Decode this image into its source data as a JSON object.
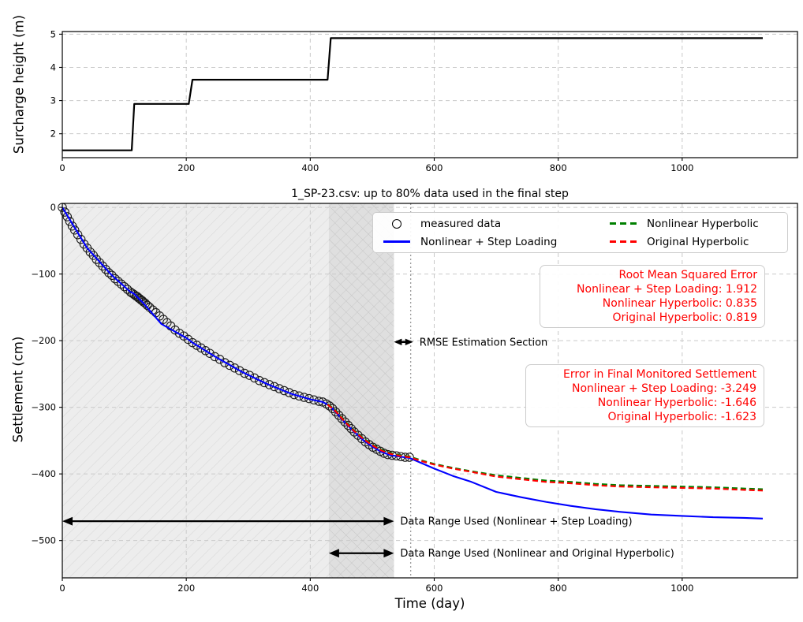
{
  "chart_data": [
    {
      "type": "line",
      "name": "surcharge-height-vs-time",
      "title": "",
      "xlabel": "",
      "ylabel": "Surcharge height (m)",
      "x_ticks": [
        0,
        200,
        400,
        600,
        800,
        1000
      ],
      "y_ticks": [
        2,
        3,
        4,
        5
      ],
      "xlim": [
        0,
        1186
      ],
      "ylim": [
        1.28,
        5.08
      ],
      "grid": true,
      "series": [
        {
          "name": "surcharge height",
          "type": "line",
          "color": "#000000",
          "width": 2.2,
          "dash": null,
          "x": [
            0,
            112,
            116,
            204,
            210,
            428,
            433,
            1130
          ],
          "y": [
            1.5,
            1.5,
            2.9,
            2.9,
            3.63,
            3.63,
            4.88,
            4.88
          ]
        }
      ]
    },
    {
      "type": "line+scatter",
      "name": "settlement-vs-time",
      "title": "1_SP-23.csv: up to 80% data used in the final step",
      "xlabel": "Time (day)",
      "ylabel": "Settlement (cm)",
      "x_ticks": [
        0,
        200,
        400,
        600,
        800,
        1000
      ],
      "y_ticks": [
        0,
        -100,
        -200,
        -300,
        -400,
        -500
      ],
      "xlim": [
        0,
        1186
      ],
      "ylim": [
        -556,
        6
      ],
      "grid": true,
      "legend": {
        "position": "upper center",
        "entries": [
          {
            "label": "measured data",
            "marker": "circle",
            "color": "#000000"
          },
          {
            "label": "Nonlinear + Step Loading",
            "marker": "solid-line",
            "color": "#0000ff"
          },
          {
            "label": "Nonlinear Hyperbolic",
            "marker": "dashed-line",
            "color": "#008000"
          },
          {
            "label": "Original Hyperbolic",
            "marker": "dashed-line",
            "color": "#ff0000"
          }
        ]
      },
      "spans": [
        {
          "name": "step-loading-range",
          "x0": 0,
          "x1": 535,
          "fill": "#ededed",
          "hatch": "/",
          "hatch_color": "#d6d6d6"
        },
        {
          "name": "hyperbolic-range",
          "x0": 430,
          "x1": 535,
          "fill": "rgba(0,0,0,0.06)",
          "hatch": "\\",
          "hatch_color": "#c4c4c4"
        }
      ],
      "vlines": [
        {
          "x": 562,
          "style": "dotted",
          "color": "#9a9a9a"
        }
      ],
      "arrows": [
        {
          "name": "rmse-estimation-section",
          "x0": 535,
          "x1": 566,
          "y": -202,
          "head": 10,
          "lw": 2.5,
          "label": "RMSE Estimation Section",
          "label_size": 13
        },
        {
          "name": "data-range-step-loading",
          "x0": 0,
          "x1": 535,
          "y": -471,
          "head": 13,
          "lw": 2.3,
          "label": "Data Range Used (Nonlinear + Step Loading)",
          "label_size": 13
        },
        {
          "name": "data-range-hyperbolic",
          "x0": 430,
          "x1": 535,
          "y": -519,
          "head": 13,
          "lw": 2.3,
          "label": "Data Range Used (Nonlinear and Original Hyperbolic)",
          "label_size": 13
        }
      ],
      "annotation_boxes": [
        {
          "name": "root-mean-squared-error",
          "color": "#ff0000",
          "lines": [
            "Root Mean Squared Error",
            "Nonlinear + Step Loading: 1.912",
            "Nonlinear Hyperbolic: 0.835",
            "Original Hyperbolic: 0.819"
          ]
        },
        {
          "name": "error-in-final-monitored-settlement",
          "color": "#ff0000",
          "lines": [
            "Error in Final Monitored Settlement",
            "Nonlinear + Step Loading: -3.249",
            "Nonlinear Hyperbolic: -1.646",
            "Original Hyperbolic: -1.623"
          ]
        }
      ],
      "series": [
        {
          "name": "measured data",
          "type": "scatter",
          "color": "#1a1a1a",
          "x": [
            0,
            4,
            8,
            12,
            16,
            20,
            25,
            30,
            35,
            40,
            45,
            50,
            55,
            60,
            65,
            70,
            75,
            80,
            85,
            90,
            95,
            100,
            105,
            110,
            113,
            116,
            119,
            121,
            123,
            125,
            127,
            129,
            131,
            134,
            137,
            141,
            146,
            151,
            157,
            163,
            169,
            175,
            182,
            189,
            196,
            203,
            210,
            217,
            224,
            231,
            238,
            246,
            254,
            262,
            270,
            278,
            286,
            294,
            302,
            310,
            318,
            326,
            334,
            342,
            350,
            358,
            366,
            374,
            382,
            390,
            398,
            406,
            414,
            420,
            426,
            431,
            436,
            441,
            446,
            451,
            456,
            461,
            466,
            471,
            477,
            483,
            489,
            495,
            501,
            507,
            513,
            519,
            525,
            532,
            539,
            546,
            553,
            560
          ],
          "y": [
            0,
            -7,
            -14,
            -21,
            -28,
            -34,
            -41,
            -48,
            -55,
            -61,
            -67,
            -72,
            -78,
            -83,
            -88,
            -93,
            -98,
            -102,
            -107,
            -111,
            -115,
            -119,
            -123,
            -127,
            -129,
            -131,
            -133,
            -134,
            -136,
            -137,
            -139,
            -140,
            -142,
            -144,
            -147,
            -150,
            -154,
            -158,
            -163,
            -168,
            -173,
            -178,
            -184,
            -189,
            -193,
            -198,
            -203,
            -207,
            -211,
            -215,
            -219,
            -224,
            -228,
            -233,
            -237,
            -241,
            -245,
            -249,
            -252,
            -256,
            -260,
            -263,
            -266,
            -269,
            -272,
            -275,
            -278,
            -281,
            -283,
            -285,
            -287,
            -289,
            -291,
            -292,
            -295,
            -298,
            -302,
            -307,
            -312,
            -317,
            -322,
            -327,
            -332,
            -337,
            -342,
            -347,
            -352,
            -356,
            -360,
            -363,
            -366,
            -369,
            -371,
            -372,
            -373,
            -374,
            -375,
            -375
          ]
        },
        {
          "name": "Nonlinear + Step Loading",
          "type": "line",
          "color": "#0000ff",
          "width": 2.1,
          "dash": null,
          "x": [
            0,
            40,
            80,
            110,
            115,
            130,
            160,
            200,
            210,
            250,
            290,
            330,
            370,
            400,
            420,
            430,
            440,
            455,
            470,
            485,
            500,
            515,
            530,
            545,
            560,
            580,
            600,
            630,
            660,
            700,
            740,
            780,
            820,
            860,
            900,
            950,
            1000,
            1050,
            1100,
            1130
          ],
          "y": [
            0,
            -61,
            -102,
            -127,
            -129,
            -143,
            -175,
            -196,
            -203,
            -226,
            -247,
            -265,
            -280,
            -288,
            -292,
            -297,
            -306,
            -322,
            -336,
            -349,
            -359,
            -367,
            -372,
            -374,
            -376,
            -384,
            -392,
            -403,
            -412,
            -427,
            -435,
            -442,
            -448,
            -453,
            -457,
            -461,
            -463,
            -465,
            -466,
            -467
          ]
        },
        {
          "name": "Nonlinear Hyperbolic",
          "type": "line",
          "color": "#008000",
          "width": 2.2,
          "dash": "7 4",
          "x": [
            428,
            440,
            455,
            470,
            485,
            500,
            515,
            530,
            545,
            560,
            580,
            600,
            630,
            660,
            700,
            740,
            780,
            820,
            860,
            900,
            950,
            1000,
            1050,
            1100,
            1130
          ],
          "y": [
            -295,
            -304,
            -320,
            -334,
            -346,
            -356,
            -364,
            -369,
            -372,
            -374,
            -380,
            -385,
            -391,
            -396,
            -402,
            -406,
            -410,
            -412,
            -415,
            -417,
            -418,
            -419,
            -420,
            -422,
            -423
          ]
        },
        {
          "name": "Original Hyperbolic",
          "type": "line",
          "color": "#ff0000",
          "width": 2.2,
          "dash": "7 4",
          "x": [
            428,
            440,
            455,
            470,
            485,
            500,
            515,
            530,
            545,
            560,
            580,
            600,
            630,
            660,
            700,
            740,
            780,
            820,
            860,
            900,
            950,
            1000,
            1050,
            1100,
            1130
          ],
          "y": [
            -296,
            -305,
            -321,
            -335,
            -347,
            -357,
            -365,
            -370,
            -373,
            -375,
            -381,
            -386,
            -392,
            -397,
            -404,
            -408,
            -412,
            -414,
            -417,
            -419,
            -420,
            -421,
            -422,
            -424,
            -425
          ]
        }
      ]
    }
  ]
}
